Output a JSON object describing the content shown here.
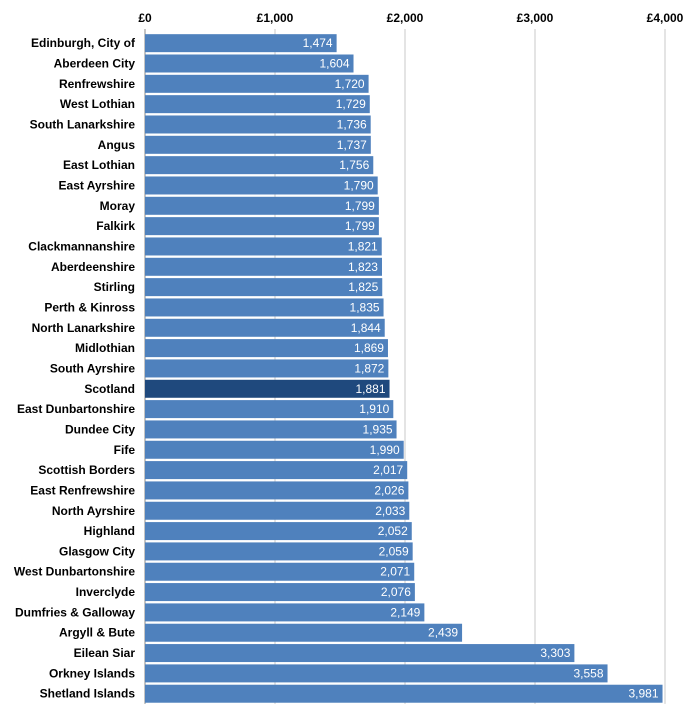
{
  "chart_data": {
    "type": "bar",
    "orientation": "horizontal",
    "title": "",
    "xlabel": "",
    "ylabel": "",
    "xlim": [
      0,
      4000
    ],
    "x_ticks": [
      0,
      1000,
      2000,
      3000,
      4000
    ],
    "x_tick_labels": [
      "£0",
      "£1,000",
      "£2,000",
      "£3,000",
      "£4,000"
    ],
    "axis_position": "top",
    "grid": true,
    "legend": "none",
    "bar_color": "#4f81bd",
    "highlight_color": "#1f497d",
    "highlight_category": "Scotland",
    "categories": [
      "Edinburgh, City of",
      "Aberdeen City",
      "Renfrewshire",
      "West Lothian",
      "South Lanarkshire",
      "Angus",
      "East Lothian",
      "East Ayrshire",
      "Moray",
      "Falkirk",
      "Clackmannanshire",
      "Aberdeenshire",
      "Stirling",
      "Perth & Kinross",
      "North Lanarkshire",
      "Midlothian",
      "South Ayrshire",
      "Scotland",
      "East Dunbartonshire",
      "Dundee City",
      "Fife",
      "Scottish Borders",
      "East Renfrewshire",
      "North Ayrshire",
      "Highland",
      "Glasgow City",
      "West Dunbartonshire",
      "Inverclyde",
      "Dumfries & Galloway",
      "Argyll & Bute",
      "Eilean Siar",
      "Orkney Islands",
      "Shetland Islands"
    ],
    "values": [
      1474,
      1604,
      1720,
      1729,
      1736,
      1737,
      1756,
      1790,
      1799,
      1799,
      1821,
      1823,
      1825,
      1835,
      1844,
      1869,
      1872,
      1881,
      1910,
      1935,
      1990,
      2017,
      2026,
      2033,
      2052,
      2059,
      2071,
      2076,
      2149,
      2439,
      3303,
      3558,
      3981
    ],
    "value_labels": [
      "1,474",
      "1,604",
      "1,720",
      "1,729",
      "1,736",
      "1,737",
      "1,756",
      "1,790",
      "1,799",
      "1,799",
      "1,821",
      "1,823",
      "1,825",
      "1,835",
      "1,844",
      "1,869",
      "1,872",
      "1,881",
      "1,910",
      "1,935",
      "1,990",
      "2,017",
      "2,026",
      "2,033",
      "2,052",
      "2,059",
      "2,071",
      "2,076",
      "2,149",
      "2,439",
      "3,303",
      "3,558",
      "3,981"
    ]
  }
}
